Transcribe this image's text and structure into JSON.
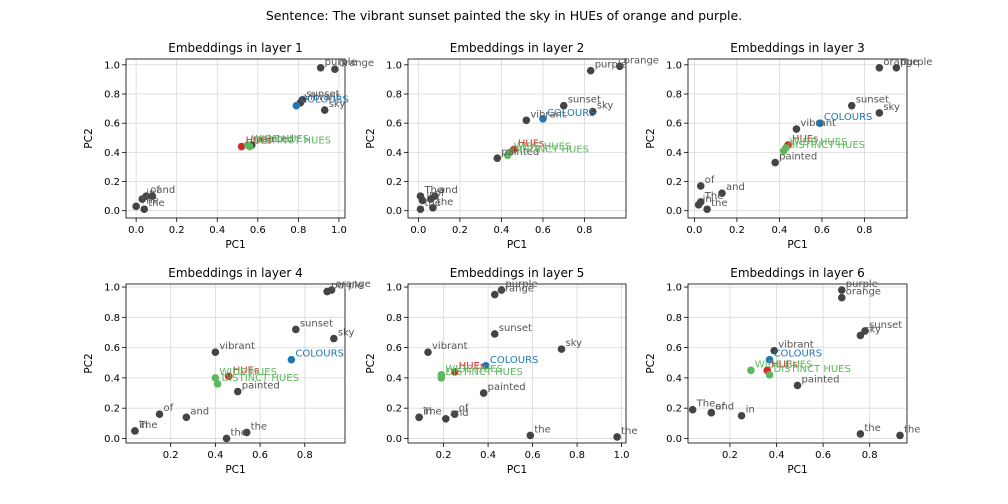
{
  "suptitle": "Sentence: The vibrant sunset painted the sky in HUEs of orange and purple.",
  "colors": {
    "word": "#555555",
    "colours": "#1f77b4",
    "hues": "#d62728",
    "wide_hues": "#5cb85c",
    "distinct_hues": "#5cb85c",
    "grid": "#d9d9d9",
    "axis": "#000000"
  },
  "chart_data": [
    {
      "type": "scatter",
      "title": "Embeddings in layer 1",
      "xlabel": "PC1",
      "ylabel": "PC2",
      "xlim": [
        -0.05,
        1.03
      ],
      "ylim": [
        -0.05,
        1.04
      ],
      "xticks": [
        "0.0",
        "0.2",
        "0.4",
        "0.6",
        "0.8",
        "1.0"
      ],
      "yticks": [
        "0.0",
        "0.2",
        "0.4",
        "0.6",
        "0.8",
        "1.0"
      ],
      "grid": true,
      "points": [
        {
          "label": "The",
          "x": 0.0,
          "y": 0.03,
          "kind": "word"
        },
        {
          "label": "in",
          "x": 0.03,
          "y": 0.08,
          "kind": "word"
        },
        {
          "label": "of",
          "x": 0.05,
          "y": 0.1,
          "kind": "word"
        },
        {
          "label": "and",
          "x": 0.08,
          "y": 0.1,
          "kind": "word"
        },
        {
          "label": "the",
          "x": 0.04,
          "y": 0.01,
          "kind": "word"
        },
        {
          "label": "vibrant",
          "x": 0.81,
          "y": 0.74,
          "kind": "word"
        },
        {
          "label": "sunset",
          "x": 0.82,
          "y": 0.76,
          "kind": "word"
        },
        {
          "label": "sky",
          "x": 0.93,
          "y": 0.69,
          "kind": "word"
        },
        {
          "label": "purple",
          "x": 0.91,
          "y": 0.98,
          "kind": "word"
        },
        {
          "label": "orange",
          "x": 0.98,
          "y": 0.97,
          "kind": "word"
        },
        {
          "label": "painted",
          "x": 0.57,
          "y": 0.45,
          "kind": "word"
        },
        {
          "label": "COLOURS",
          "x": 0.79,
          "y": 0.72,
          "kind": "colours"
        },
        {
          "label": "HUEs",
          "x": 0.52,
          "y": 0.44,
          "kind": "hues"
        },
        {
          "label": "WIDE HUES",
          "x": 0.55,
          "y": 0.45,
          "kind": "wide_hues"
        },
        {
          "label": "DISTINCT HUES",
          "x": 0.56,
          "y": 0.44,
          "kind": "distinct_hues"
        }
      ]
    },
    {
      "type": "scatter",
      "title": "Embeddings in layer 2",
      "xlabel": "PC1",
      "ylabel": "PC2",
      "xlim": [
        -0.05,
        1.0
      ],
      "ylim": [
        -0.05,
        1.04
      ],
      "xticks": [
        "0.0",
        "0.2",
        "0.4",
        "0.6",
        "0.8"
      ],
      "yticks": [
        "0.0",
        "0.2",
        "0.4",
        "0.6",
        "0.8",
        "1.0"
      ],
      "grid": true,
      "points": [
        {
          "label": "The",
          "x": 0.01,
          "y": 0.1,
          "kind": "word"
        },
        {
          "label": "in",
          "x": 0.02,
          "y": 0.07,
          "kind": "word"
        },
        {
          "label": "of",
          "x": 0.06,
          "y": 0.08,
          "kind": "word"
        },
        {
          "label": "and",
          "x": 0.08,
          "y": 0.1,
          "kind": "word"
        },
        {
          "label": "the",
          "x": 0.07,
          "y": 0.02,
          "kind": "word"
        },
        {
          "label": "the",
          "x": 0.01,
          "y": 0.01,
          "kind": "word"
        },
        {
          "label": "vibrant",
          "x": 0.52,
          "y": 0.62,
          "kind": "word"
        },
        {
          "label": "sunset",
          "x": 0.7,
          "y": 0.72,
          "kind": "word"
        },
        {
          "label": "sky",
          "x": 0.84,
          "y": 0.68,
          "kind": "word"
        },
        {
          "label": "purple",
          "x": 0.83,
          "y": 0.96,
          "kind": "word"
        },
        {
          "label": "orange",
          "x": 0.97,
          "y": 0.99,
          "kind": "word"
        },
        {
          "label": "painted",
          "x": 0.38,
          "y": 0.36,
          "kind": "word"
        },
        {
          "label": "COLOURS",
          "x": 0.6,
          "y": 0.63,
          "kind": "colours"
        },
        {
          "label": "HUEs",
          "x": 0.46,
          "y": 0.42,
          "kind": "hues"
        },
        {
          "label": "WIDE HUES",
          "x": 0.44,
          "y": 0.4,
          "kind": "wide_hues"
        },
        {
          "label": "DISTINCT HUES",
          "x": 0.43,
          "y": 0.38,
          "kind": "distinct_hues"
        }
      ]
    },
    {
      "type": "scatter",
      "title": "Embeddings in layer 3",
      "xlabel": "PC1",
      "ylabel": "PC2",
      "xlim": [
        -0.03,
        1.0
      ],
      "ylim": [
        -0.05,
        1.04
      ],
      "xticks": [
        "0.0",
        "0.2",
        "0.4",
        "0.6",
        "0.8"
      ],
      "yticks": [
        "0.0",
        "0.2",
        "0.4",
        "0.6",
        "0.8",
        "1.0"
      ],
      "grid": true,
      "points": [
        {
          "label": "The",
          "x": 0.03,
          "y": 0.06,
          "kind": "word"
        },
        {
          "label": "in",
          "x": 0.02,
          "y": 0.04,
          "kind": "word"
        },
        {
          "label": "of",
          "x": 0.03,
          "y": 0.17,
          "kind": "word"
        },
        {
          "label": "and",
          "x": 0.13,
          "y": 0.12,
          "kind": "word"
        },
        {
          "label": "the",
          "x": 0.06,
          "y": 0.01,
          "kind": "word"
        },
        {
          "label": "vibrant",
          "x": 0.48,
          "y": 0.56,
          "kind": "word"
        },
        {
          "label": "sunset",
          "x": 0.74,
          "y": 0.72,
          "kind": "word"
        },
        {
          "label": "sky",
          "x": 0.87,
          "y": 0.67,
          "kind": "word"
        },
        {
          "label": "orange",
          "x": 0.87,
          "y": 0.98,
          "kind": "word"
        },
        {
          "label": "purple",
          "x": 0.95,
          "y": 0.98,
          "kind": "word"
        },
        {
          "label": "painted",
          "x": 0.38,
          "y": 0.33,
          "kind": "word"
        },
        {
          "label": "COLOURS",
          "x": 0.59,
          "y": 0.6,
          "kind": "colours"
        },
        {
          "label": "HUEs",
          "x": 0.44,
          "y": 0.45,
          "kind": "hues"
        },
        {
          "label": "WIDE HUES",
          "x": 0.43,
          "y": 0.43,
          "kind": "wide_hues"
        },
        {
          "label": "DISTINCT HUES",
          "x": 0.42,
          "y": 0.41,
          "kind": "distinct_hues"
        }
      ]
    },
    {
      "type": "scatter",
      "title": "Embeddings in layer 4",
      "xlabel": "PC1",
      "ylabel": "PC2",
      "xlim": [
        0.0,
        0.98
      ],
      "ylim": [
        -0.03,
        1.02
      ],
      "xticks": [
        "0.2",
        "0.4",
        "0.6",
        "0.8"
      ],
      "yticks": [
        "0.0",
        "0.2",
        "0.4",
        "0.6",
        "0.8",
        "1.0"
      ],
      "grid": true,
      "points": [
        {
          "label": "The",
          "x": 0.04,
          "y": 0.05,
          "kind": "word"
        },
        {
          "label": "in",
          "x": 0.04,
          "y": 0.05,
          "kind": "word"
        },
        {
          "label": "of",
          "x": 0.15,
          "y": 0.16,
          "kind": "word"
        },
        {
          "label": "and",
          "x": 0.27,
          "y": 0.14,
          "kind": "word"
        },
        {
          "label": "the",
          "x": 0.45,
          "y": 0.0,
          "kind": "word"
        },
        {
          "label": "the",
          "x": 0.54,
          "y": 0.04,
          "kind": "word"
        },
        {
          "label": "vibrant",
          "x": 0.4,
          "y": 0.57,
          "kind": "word"
        },
        {
          "label": "sunset",
          "x": 0.76,
          "y": 0.72,
          "kind": "word"
        },
        {
          "label": "sky",
          "x": 0.93,
          "y": 0.66,
          "kind": "word"
        },
        {
          "label": "purple",
          "x": 0.9,
          "y": 0.97,
          "kind": "word"
        },
        {
          "label": "orange",
          "x": 0.92,
          "y": 0.98,
          "kind": "word"
        },
        {
          "label": "painted",
          "x": 0.5,
          "y": 0.31,
          "kind": "word"
        },
        {
          "label": "COLOURS",
          "x": 0.74,
          "y": 0.52,
          "kind": "colours"
        },
        {
          "label": "HUEs",
          "x": 0.46,
          "y": 0.41,
          "kind": "hues"
        },
        {
          "label": "WIDE HUES",
          "x": 0.4,
          "y": 0.4,
          "kind": "wide_hues"
        },
        {
          "label": "DISTINCT HUES",
          "x": 0.41,
          "y": 0.36,
          "kind": "distinct_hues"
        }
      ]
    },
    {
      "type": "scatter",
      "title": "Embeddings in layer 5",
      "xlabel": "PC1",
      "ylabel": "PC2",
      "xlim": [
        0.04,
        1.02
      ],
      "ylim": [
        -0.03,
        1.02
      ],
      "xticks": [
        "0.2",
        "0.4",
        "0.6",
        "0.8",
        "1.0"
      ],
      "yticks": [
        "0.0",
        "0.2",
        "0.4",
        "0.6",
        "0.8",
        "1.0"
      ],
      "grid": true,
      "points": [
        {
          "label": "The",
          "x": 0.09,
          "y": 0.14,
          "kind": "word"
        },
        {
          "label": "in",
          "x": 0.09,
          "y": 0.14,
          "kind": "word"
        },
        {
          "label": "of",
          "x": 0.25,
          "y": 0.16,
          "kind": "word"
        },
        {
          "label": "and",
          "x": 0.21,
          "y": 0.13,
          "kind": "word"
        },
        {
          "label": "the",
          "x": 0.59,
          "y": 0.02,
          "kind": "word"
        },
        {
          "label": "the",
          "x": 0.98,
          "y": 0.01,
          "kind": "word"
        },
        {
          "label": "vibrant",
          "x": 0.13,
          "y": 0.57,
          "kind": "word"
        },
        {
          "label": "sunset",
          "x": 0.43,
          "y": 0.69,
          "kind": "word"
        },
        {
          "label": "sky",
          "x": 0.73,
          "y": 0.59,
          "kind": "word"
        },
        {
          "label": "purple",
          "x": 0.46,
          "y": 0.98,
          "kind": "word"
        },
        {
          "label": "orange",
          "x": 0.43,
          "y": 0.95,
          "kind": "word"
        },
        {
          "label": "painted",
          "x": 0.38,
          "y": 0.3,
          "kind": "word"
        },
        {
          "label": "COLOURS",
          "x": 0.39,
          "y": 0.48,
          "kind": "colours"
        },
        {
          "label": "HUEs",
          "x": 0.25,
          "y": 0.44,
          "kind": "hues"
        },
        {
          "label": "WIDE HUES",
          "x": 0.19,
          "y": 0.42,
          "kind": "wide_hues"
        },
        {
          "label": "DISTINCT HUES",
          "x": 0.19,
          "y": 0.4,
          "kind": "distinct_hues"
        }
      ]
    },
    {
      "type": "scatter",
      "title": "Embeddings in layer 6",
      "xlabel": "PC1",
      "ylabel": "PC2",
      "xlim": [
        0.02,
        0.96
      ],
      "ylim": [
        -0.03,
        1.02
      ],
      "xticks": [
        "0.2",
        "0.4",
        "0.6",
        "0.8"
      ],
      "yticks": [
        "0.0",
        "0.2",
        "0.4",
        "0.6",
        "0.8",
        "1.0"
      ],
      "grid": true,
      "points": [
        {
          "label": "The",
          "x": 0.04,
          "y": 0.19,
          "kind": "word"
        },
        {
          "label": "and",
          "x": 0.12,
          "y": 0.17,
          "kind": "word"
        },
        {
          "label": "of",
          "x": 0.12,
          "y": 0.17,
          "kind": "word"
        },
        {
          "label": "in",
          "x": 0.25,
          "y": 0.15,
          "kind": "word"
        },
        {
          "label": "the",
          "x": 0.76,
          "y": 0.03,
          "kind": "word"
        },
        {
          "label": "the",
          "x": 0.93,
          "y": 0.02,
          "kind": "word"
        },
        {
          "label": "vibrant",
          "x": 0.39,
          "y": 0.58,
          "kind": "word"
        },
        {
          "label": "sunset",
          "x": 0.78,
          "y": 0.71,
          "kind": "word"
        },
        {
          "label": "sky",
          "x": 0.76,
          "y": 0.68,
          "kind": "word"
        },
        {
          "label": "purple",
          "x": 0.68,
          "y": 0.98,
          "kind": "word"
        },
        {
          "label": "orange",
          "x": 0.68,
          "y": 0.93,
          "kind": "word"
        },
        {
          "label": "painted",
          "x": 0.49,
          "y": 0.35,
          "kind": "word"
        },
        {
          "label": "COLOURS",
          "x": 0.37,
          "y": 0.52,
          "kind": "colours"
        },
        {
          "label": "HUEs",
          "x": 0.36,
          "y": 0.45,
          "kind": "hues"
        },
        {
          "label": "WIDE HUES",
          "x": 0.29,
          "y": 0.45,
          "kind": "wide_hues"
        },
        {
          "label": "DISTINCT HUES",
          "x": 0.37,
          "y": 0.42,
          "kind": "distinct_hues"
        }
      ]
    }
  ]
}
